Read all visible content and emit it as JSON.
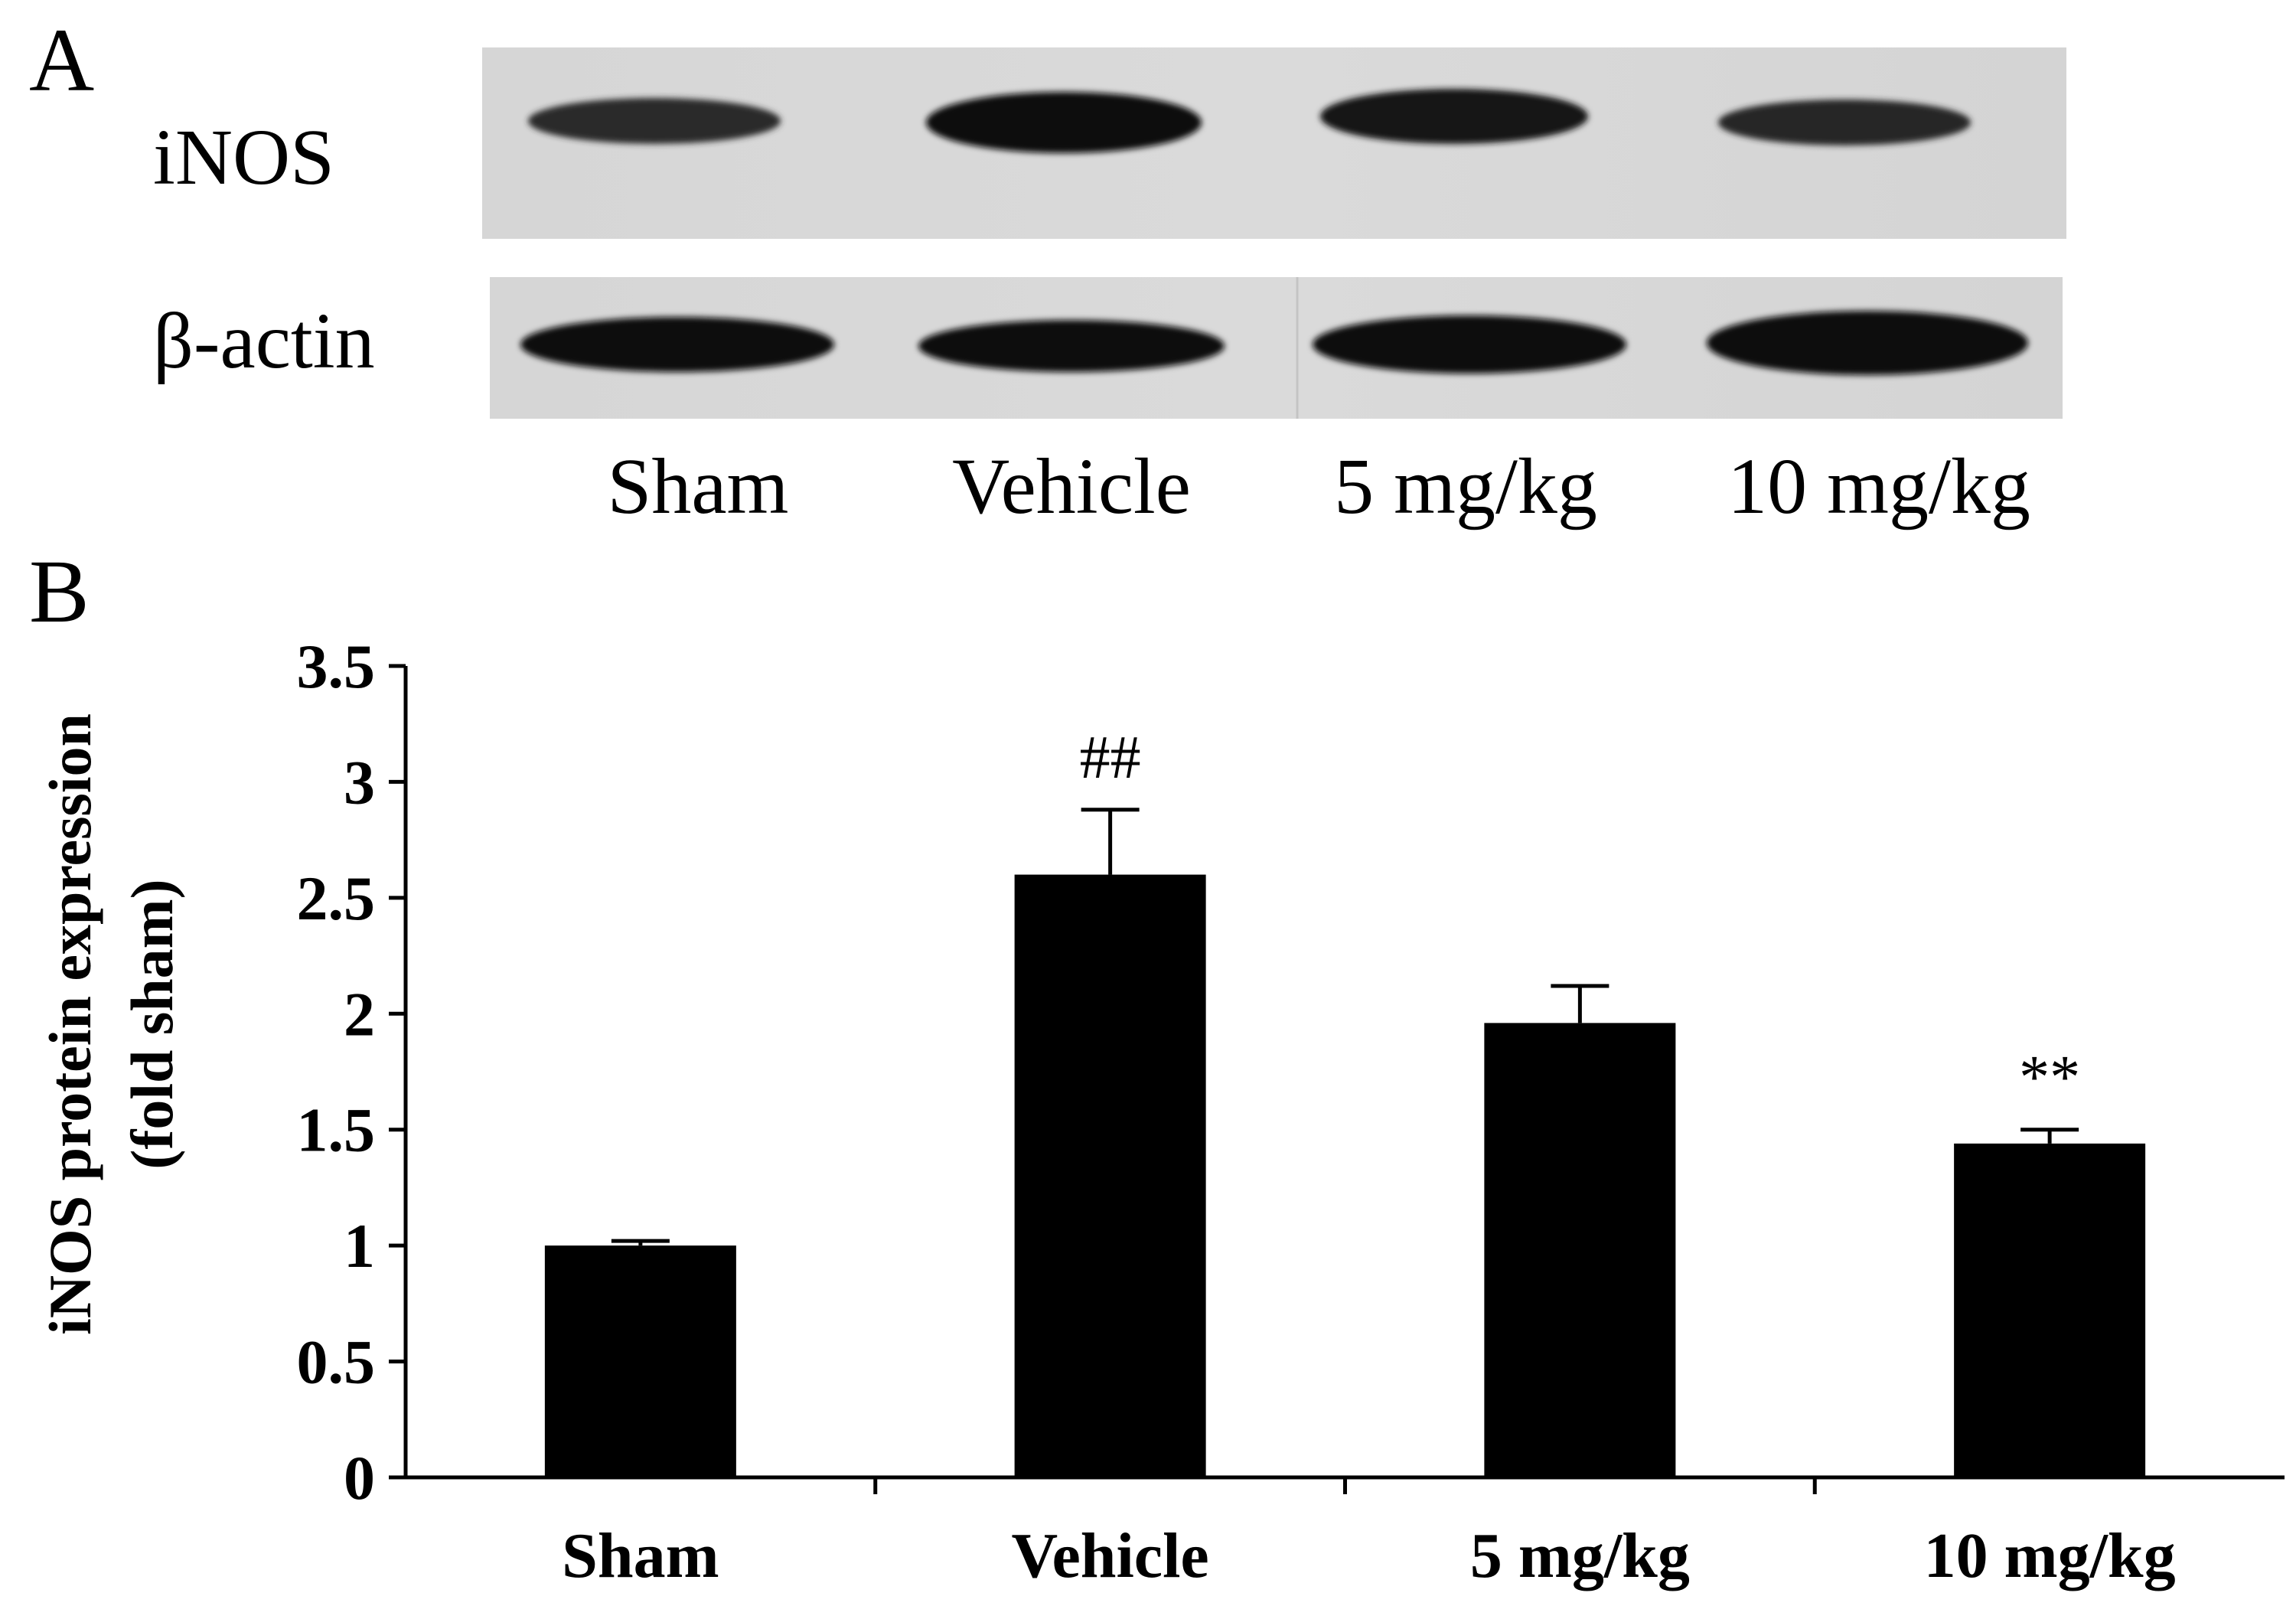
{
  "panel_a": {
    "label": "A",
    "row_labels": [
      "iNOS",
      "β-actin"
    ],
    "lane_labels": [
      "Sham",
      "Vehicle",
      "5 mg/kg",
      "10 mg/kg"
    ]
  },
  "panel_b": {
    "label": "B"
  },
  "chart_data": {
    "type": "bar",
    "categories": [
      "Sham",
      "Vehicle",
      "5 mg/kg",
      "10 mg/kg"
    ],
    "values": [
      1.0,
      2.6,
      1.96,
      1.44
    ],
    "errors": [
      0.02,
      0.28,
      0.16,
      0.06
    ],
    "annotations": [
      "",
      "##",
      "",
      "**"
    ],
    "ylabel_line1": "iNOS protein expression",
    "ylabel_line2": "(fold sham)",
    "xlabel": "",
    "ylim": [
      0,
      3.5
    ],
    "yticks": [
      0,
      0.5,
      1,
      1.5,
      2,
      2.5,
      3,
      3.5
    ],
    "ytick_labels": [
      "0",
      "0.5",
      "1",
      "1.5",
      "2",
      "2.5",
      "3",
      "3.5"
    ],
    "bar_color": "#000000",
    "grid": false
  }
}
